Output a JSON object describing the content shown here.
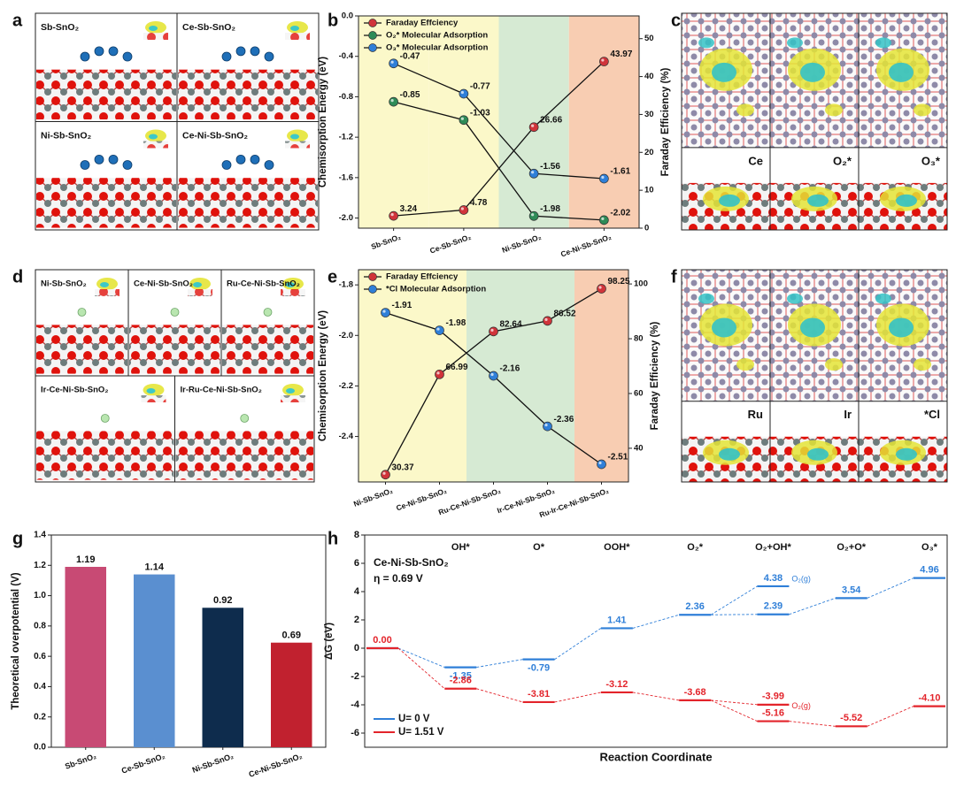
{
  "panels": {
    "a": {
      "letter": "a",
      "labels": [
        "Sb-SnO₂",
        "Ce-Sb-SnO₂",
        "Ni-Sb-SnO₂",
        "Ce-Ni-Sb-SnO₂"
      ]
    },
    "b": {
      "letter": "b"
    },
    "c": {
      "letter": "c",
      "labels": [
        "Ce",
        "O₂*",
        "O₃*"
      ]
    },
    "d": {
      "letter": "d",
      "labels": [
        "Ni-Sb-SnO₂",
        "Ce-Ni-Sb-SnO₂",
        "Ru-Ce-Ni-Sb-SnO₂",
        "Ir-Ce-Ni-Sb-SnO₂",
        "Ir-Ru-Ce-Ni-Sb-SnO₂"
      ]
    },
    "e": {
      "letter": "e"
    },
    "f": {
      "letter": "f",
      "labels": [
        "Ru",
        "Ir",
        "*Cl"
      ]
    },
    "g": {
      "letter": "g"
    },
    "h": {
      "letter": "h"
    }
  },
  "chart_data": [
    {
      "type": "line",
      "categories": [
        "Sb-SnO₂",
        "Ce-Sb-SnO₂",
        "Ni-Sb-SnO₂",
        "Ce-Ni-Sb-SnO₂"
      ],
      "band_colors": [
        "#fbf8c9",
        "#fbf8c9",
        "#d6ead3",
        "#f8cdb2"
      ],
      "ylabel": "Chemisorption Energy (eV)",
      "y2label": "Faraday Efficiency (%)",
      "ylim": [
        -2.1,
        0
      ],
      "yticks": [
        {
          "value": -2,
          "label": "-2.0"
        },
        -1.6,
        -1.2,
        -0.8,
        -0.4,
        {
          "value": 0,
          "label": "0.0"
        }
      ],
      "y2lim": [
        0,
        56
      ],
      "y2ticks": [
        0,
        10,
        20,
        30,
        40,
        50
      ],
      "series": [
        {
          "name": "Faraday Effciency",
          "color": "#d0343a",
          "axis": "y2",
          "values": [
            3.24,
            4.78,
            26.66,
            43.97
          ]
        },
        {
          "name": "O₂* Molecular Adsorption",
          "color": "#2e8b57",
          "values": [
            -0.85,
            -1.03,
            -1.98,
            -2.02
          ]
        },
        {
          "name": "O₃* Molecular Adsorption",
          "color": "#2f7fd8",
          "values": [
            -0.47,
            -0.77,
            -1.56,
            -1.61
          ]
        }
      ]
    },
    {
      "type": "line",
      "categories": [
        "Ni-Sb-SnO₂",
        "Ce-Ni-Sb-SnO₂",
        "Ru-Ce-Ni-Sb-SnO₂",
        "Ir-Ce-Ni-Sb-SnO₂",
        "Ru-Ir-Ce-Ni-Sb-SnO₂"
      ],
      "band_colors": [
        "#fbf8c9",
        "#fbf8c9",
        "#d6ead3",
        "#d6ead3",
        "#f8cdb2"
      ],
      "ylabel": "Chemisorption Energy (eV)",
      "y2label": "Faraday Efficiency (%)",
      "ylim": [
        -2.58,
        -1.74
      ],
      "yticks": [
        -1.8,
        {
          "value": -2,
          "label": "-2.0"
        },
        -2.2,
        -2.4
      ],
      "y2lim": [
        27.7,
        105.2
      ],
      "y2ticks": [
        40,
        60,
        80,
        100
      ],
      "series": [
        {
          "name": "Faraday Effciency",
          "color": "#d0343a",
          "axis": "y2",
          "values": [
            30.37,
            66.99,
            82.64,
            86.52,
            98.25
          ]
        },
        {
          "name": "*Cl Molecular Adsorption",
          "color": "#2f7fd8",
          "values": [
            -1.91,
            -1.98,
            -2.16,
            -2.36,
            -2.51
          ]
        }
      ]
    },
    {
      "type": "bar",
      "ylabel": "Theoretical overpotential (V)",
      "categories": [
        "Sb-SnO₂",
        "Ce-Sb-SnO₂",
        "Ni-Sb-SnO₂",
        "Ce-Ni-Sb-SnO₂"
      ],
      "values": [
        1.19,
        1.14,
        0.92,
        0.69
      ],
      "colors": [
        "#c84a74",
        "#5a8fd0",
        "#0e2c4d",
        "#c1212f"
      ],
      "ylim": [
        0,
        1.4
      ],
      "yticks": [
        {
          "value": 0,
          "label": "0.0"
        },
        0.2,
        0.4,
        0.6,
        0.8,
        {
          "value": 1,
          "label": "1.0"
        },
        1.2,
        1.4
      ]
    },
    {
      "type": "energy_profile",
      "ylabel": "ΔG (eV)",
      "xlabel": "Reaction Coordinate",
      "categories": [
        null,
        "OH*",
        "O*",
        "OOH*",
        "O₂*",
        "O₂+OH*",
        "O₂+O*",
        "O₃*"
      ],
      "annotations": [
        "Ce-Ni-Sb-SnO₂",
        "η = 0.69 V"
      ],
      "ylim": [
        -7,
        8
      ],
      "yticks": [
        -6,
        -4,
        -2,
        0,
        2,
        4,
        6,
        8
      ],
      "legend": "lower left",
      "series": [
        {
          "name": "U= 0 V",
          "color": "#2f7fd8",
          "values": [
            0,
            -1.35,
            -0.79,
            1.41,
            2.36,
            2.39,
            3.54,
            4.96
          ],
          "value_labels": [
            null,
            "-1.35",
            "-0.79",
            "1.41",
            "2.36",
            "2.39",
            "3.54",
            "4.96"
          ],
          "gas_values": [
            null,
            null,
            null,
            null,
            null,
            4.38,
            null,
            null
          ],
          "gas_value_labels": [
            null,
            null,
            null,
            null,
            null,
            "4.38",
            null,
            null
          ],
          "gas_label": "O₂(g)"
        },
        {
          "name": "U= 1.51 V",
          "color": "#e3242b",
          "values": [
            0,
            -2.86,
            -3.81,
            -3.12,
            -3.68,
            -5.16,
            -5.52,
            -4.1
          ],
          "value_labels": [
            "0.00",
            "-2.86",
            "-3.81",
            "-3.12",
            "-3.68",
            "-5.16",
            "-5.52",
            "-4.10"
          ],
          "gas_values": [
            null,
            null,
            null,
            null,
            null,
            -3.99,
            null,
            null
          ],
          "gas_value_labels": [
            null,
            null,
            null,
            null,
            null,
            "-3.99",
            null,
            null
          ],
          "gas_label": "O₂(g)"
        }
      ]
    }
  ]
}
